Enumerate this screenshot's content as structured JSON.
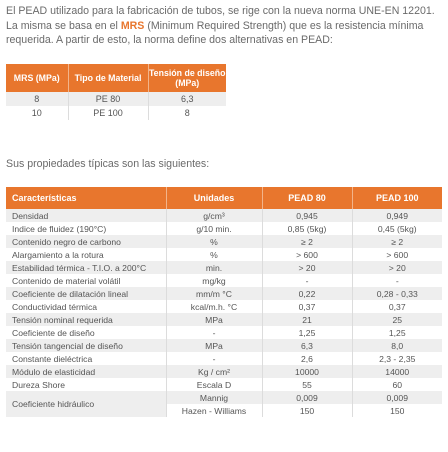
{
  "intro": {
    "part1": "El PEAD utilizado para la fabricación de tubos, se rige con la nueva norma UNE-EN 12201. La misma se basa en el ",
    "mrs": "MRS",
    "part2": " (Minimum Required Strength) que es la resistencia mínima requerida. A partir de esto, la norma define dos alternativas en PEAD:"
  },
  "mrs_table": {
    "headers": [
      "MRS (MPa)",
      "Tipo de Material",
      "Tensión de diseño (MPa)"
    ],
    "rows": [
      [
        "8",
        "PE 80",
        "6,3"
      ],
      [
        "10",
        "PE 100",
        "8"
      ]
    ]
  },
  "subtitle": "Sus propiedades típicas son las siguientes:",
  "props_table": {
    "headers": [
      "Características",
      "Unidades",
      "PEAD 80",
      "PEAD 100"
    ],
    "rows": [
      [
        "Densidad",
        "g/cm³",
        "0,945",
        "0,949"
      ],
      [
        "Indice de fluidez (190°C)",
        "g/10 min.",
        "0,85 (5kg)",
        "0,45 (5kg)"
      ],
      [
        "Contenido negro de carbono",
        "%",
        "≥ 2",
        "≥ 2"
      ],
      [
        "Alargamiento a la rotura",
        "%",
        "> 600",
        "> 600"
      ],
      [
        "Estabilidad térmica - T.I.O. a 200°C",
        "min.",
        "> 20",
        "> 20"
      ],
      [
        "Contenido de material volátil",
        "mg/kg",
        "-",
        "-"
      ],
      [
        "Coeficiente de dilatación lineal",
        "mm/m °C",
        "0,22",
        "0,28 - 0,33"
      ],
      [
        "Conductividad térmica",
        "kcal/m.h. °C",
        "0,37",
        "0,37"
      ],
      [
        "Tensión nominal requerida",
        "MPa",
        "21",
        "25"
      ],
      [
        "Coeficiente de diseño",
        "-",
        "1,25",
        "1,25"
      ],
      [
        "Tensión tangencial de diseño",
        "MPa",
        "6,3",
        "8,0"
      ],
      [
        "Constante dieléctrica",
        "-",
        "2,6",
        "2,3 - 2,35"
      ],
      [
        "Módulo de elasticidad",
        "Kg / cm²",
        "10000",
        "14000"
      ],
      [
        "Dureza Shore",
        "Escala D",
        "55",
        "60"
      ]
    ],
    "hydraulic": {
      "label": "Coeficiente hidráulico",
      "rows": [
        [
          "Mannig",
          "0,009",
          "0,009"
        ],
        [
          "Hazen - Williams",
          "150",
          "150"
        ]
      ]
    }
  }
}
